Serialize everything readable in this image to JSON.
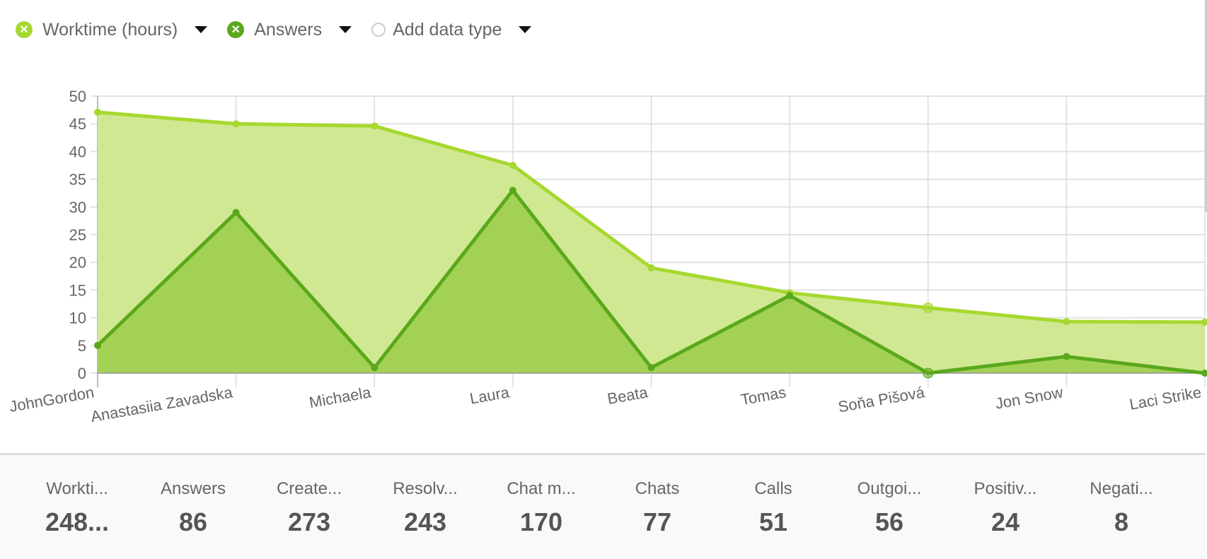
{
  "legend": {
    "items": [
      {
        "label": "Worktime (hours)",
        "color": "#a6d82e",
        "icon": "close-icon",
        "active": true
      },
      {
        "label": "Answers",
        "color": "#5aa81c",
        "icon": "close-icon",
        "active": true
      },
      {
        "label": "Add data type",
        "color": "#cccccc",
        "icon": "empty-circle-icon",
        "active": false
      }
    ]
  },
  "chart_data": {
    "type": "area",
    "categories": [
      "JohnGordon",
      "Anastasiia Zavadska",
      "Michaela",
      "Laura",
      "Beata",
      "Tomas",
      "Soňa Pišová",
      "Jon Snow",
      "Laci Strike"
    ],
    "series": [
      {
        "name": "Worktime (hours)",
        "color": "#a6d82e",
        "fill": "#d1e893",
        "values": [
          47.1,
          45,
          44.6,
          37.5,
          19,
          14.5,
          11.8,
          9.3,
          9.2
        ]
      },
      {
        "name": "Answers",
        "color": "#5aa81c",
        "fill": "#a3d156",
        "values": [
          5,
          29,
          1,
          33,
          1,
          14,
          0,
          3,
          0
        ]
      }
    ],
    "ylim": [
      0,
      50
    ],
    "yticks": [
      0,
      5,
      10,
      15,
      20,
      25,
      30,
      35,
      40,
      45,
      50
    ],
    "grid": true
  },
  "stats": [
    {
      "label": "Workti...",
      "value": "248..."
    },
    {
      "label": "Answers",
      "value": "86"
    },
    {
      "label": "Create...",
      "value": "273"
    },
    {
      "label": "Resolv...",
      "value": "243"
    },
    {
      "label": "Chat m...",
      "value": "170"
    },
    {
      "label": "Chats",
      "value": "77"
    },
    {
      "label": "Calls",
      "value": "51"
    },
    {
      "label": "Outgoi...",
      "value": "56"
    },
    {
      "label": "Positiv...",
      "value": "24"
    },
    {
      "label": "Negati...",
      "value": "8"
    }
  ]
}
